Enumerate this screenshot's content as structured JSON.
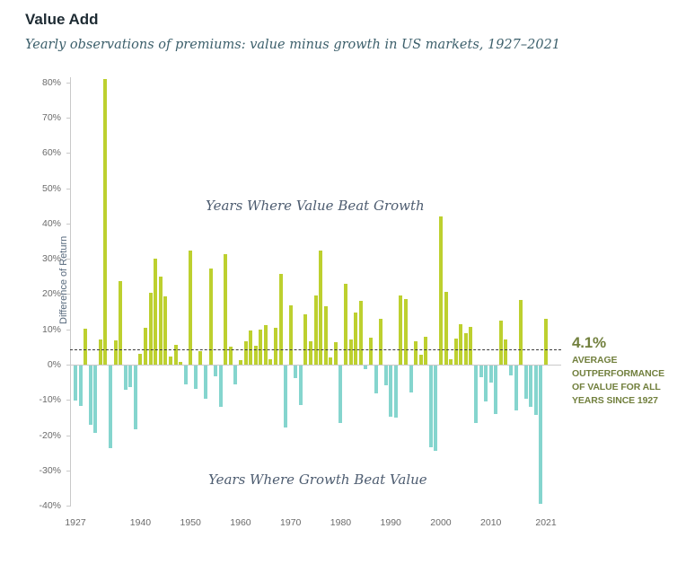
{
  "header": {
    "title": "Value Add",
    "subtitle": "Yearly observations of premiums: value minus growth in US markets, 1927–2021"
  },
  "chart": {
    "y_axis_label": "Difference of Return",
    "region_label_positive": "Years Where Value Beat Growth",
    "region_label_negative": "Years Where Growth Beat Value",
    "annotation": {
      "headline": "4.1%",
      "lines": [
        "AVERAGE",
        "OUTPERFORMANCE",
        "OF VALUE FOR ALL",
        "YEARS SINCE 1927"
      ]
    },
    "colors": {
      "positive_bar": "#bdd02f",
      "negative_bar": "#85d5ce",
      "average_line": "#3c3c3c",
      "annotation_text": "#72803e",
      "axis": "#c9c9c9",
      "tick_text": "#6b6b6b",
      "region_label_text": "#4d5c70"
    }
  },
  "chart_data": {
    "type": "bar",
    "title": "Value Add",
    "subtitle": "Yearly observations of premiums: value minus growth in US markets, 1927–2021",
    "xlabel": "",
    "ylabel": "Difference of Return",
    "ylim": [
      -40,
      80
    ],
    "grid": false,
    "average_line_value": 4.1,
    "y_ticks": [
      80,
      70,
      60,
      50,
      40,
      30,
      20,
      10,
      0,
      -10,
      -20,
      -30,
      -40
    ],
    "x_ticks": [
      1927,
      1940,
      1950,
      1960,
      1970,
      1980,
      1990,
      2000,
      2010,
      2021
    ],
    "years": [
      1927,
      1928,
      1929,
      1930,
      1931,
      1932,
      1933,
      1934,
      1935,
      1936,
      1937,
      1938,
      1939,
      1940,
      1941,
      1942,
      1943,
      1944,
      1945,
      1946,
      1947,
      1948,
      1949,
      1950,
      1951,
      1952,
      1953,
      1954,
      1955,
      1956,
      1957,
      1958,
      1959,
      1960,
      1961,
      1962,
      1963,
      1964,
      1965,
      1966,
      1967,
      1968,
      1969,
      1970,
      1971,
      1972,
      1973,
      1974,
      1975,
      1976,
      1977,
      1978,
      1979,
      1980,
      1981,
      1982,
      1983,
      1984,
      1985,
      1986,
      1987,
      1988,
      1989,
      1990,
      1991,
      1992,
      1993,
      1994,
      1995,
      1996,
      1997,
      1998,
      1999,
      2000,
      2001,
      2002,
      2003,
      2004,
      2005,
      2006,
      2007,
      2008,
      2009,
      2010,
      2011,
      2012,
      2013,
      2014,
      2015,
      2016,
      2017,
      2018,
      2019,
      2020,
      2021
    ],
    "values": [
      -9.9,
      -11.4,
      10.2,
      -16.7,
      -19.2,
      7.2,
      81.0,
      -23.5,
      6.8,
      23.6,
      -6.9,
      -6.1,
      -18.0,
      3.0,
      10.4,
      20.4,
      29.9,
      25.0,
      19.3,
      2.2,
      5.6,
      0.8,
      -5.4,
      32.4,
      -6.5,
      3.9,
      -9.4,
      27.2,
      -3.1,
      -11.6,
      31.4,
      5.1,
      -5.3,
      1.3,
      6.6,
      9.7,
      5.3,
      10.0,
      11.3,
      1.5,
      10.4,
      25.8,
      -17.5,
      16.8,
      -3.6,
      -11.2,
      14.2,
      6.6,
      19.7,
      32.2,
      16.6,
      2.0,
      6.4,
      -16.3,
      22.9,
      7.2,
      14.7,
      18.1,
      -1.0,
      7.6,
      -7.8,
      13.1,
      -5.7,
      -14.6,
      -14.8,
      19.7,
      18.5,
      -7.6,
      6.6,
      2.8,
      7.9,
      -23.1,
      -24.3,
      42.0,
      20.6,
      1.4,
      7.5,
      11.4,
      9.0,
      10.6,
      -16.3,
      -3.4,
      -10.3,
      -4.8,
      -13.7,
      12.4,
      7.2,
      -2.9,
      -12.7,
      18.4,
      -9.3,
      -11.8,
      -14.0,
      -39.2,
      13.0
    ],
    "legend": null
  }
}
